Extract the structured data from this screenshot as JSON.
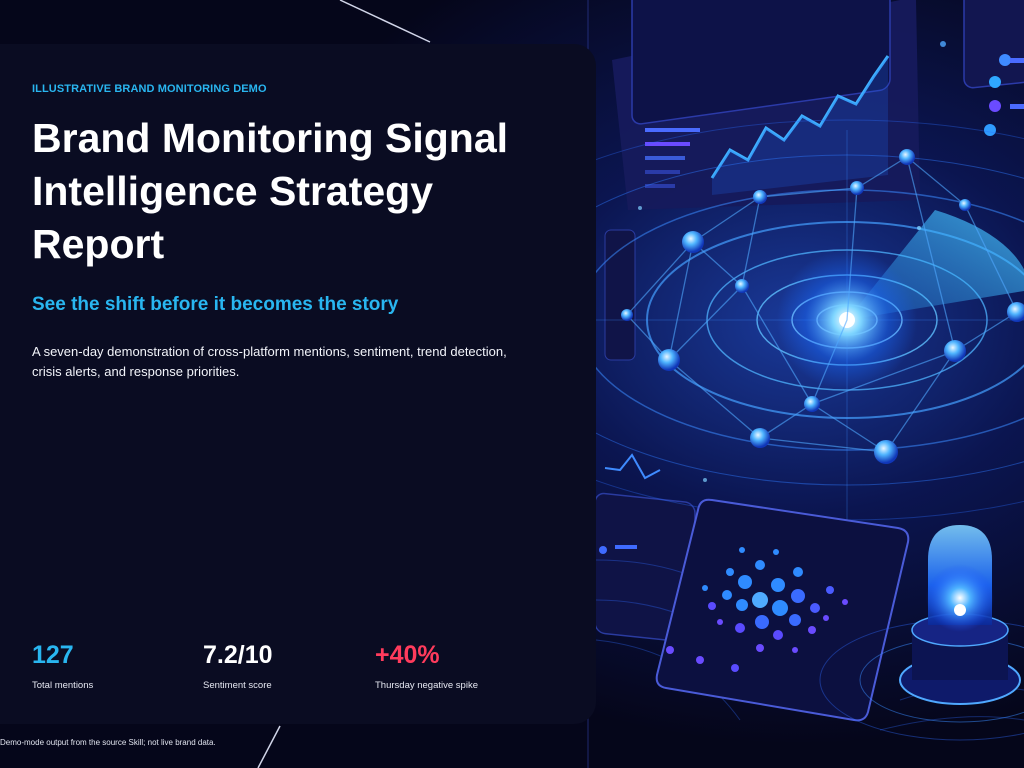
{
  "hero": {
    "eyebrow": "ILLUSTRATIVE BRAND MONITORING DEMO",
    "title": "Brand Monitoring Signal Intelligence Strategy Report",
    "subtitle": "See the shift before it becomes the story",
    "description": "A seven-day demonstration of cross-platform mentions, sentiment, trend detection, crisis alerts, and response priorities."
  },
  "stats": [
    {
      "value": "127",
      "label": "Total mentions",
      "color": "#29b6f0"
    },
    {
      "value": "7.2/10",
      "label": "Sentiment score",
      "color": "#ffffff"
    },
    {
      "value": "+40%",
      "label": "Thursday negative spike",
      "color": "#ff3b5c"
    }
  ],
  "footnote": "Demo-mode output from the source Skill; not live brand data.",
  "colors": {
    "accent": "#29b6f0",
    "alert": "#ff3b5c",
    "panel": "#0a0c22",
    "background": "#05061a"
  },
  "illustration": {
    "name": "network-radar-illustration"
  }
}
